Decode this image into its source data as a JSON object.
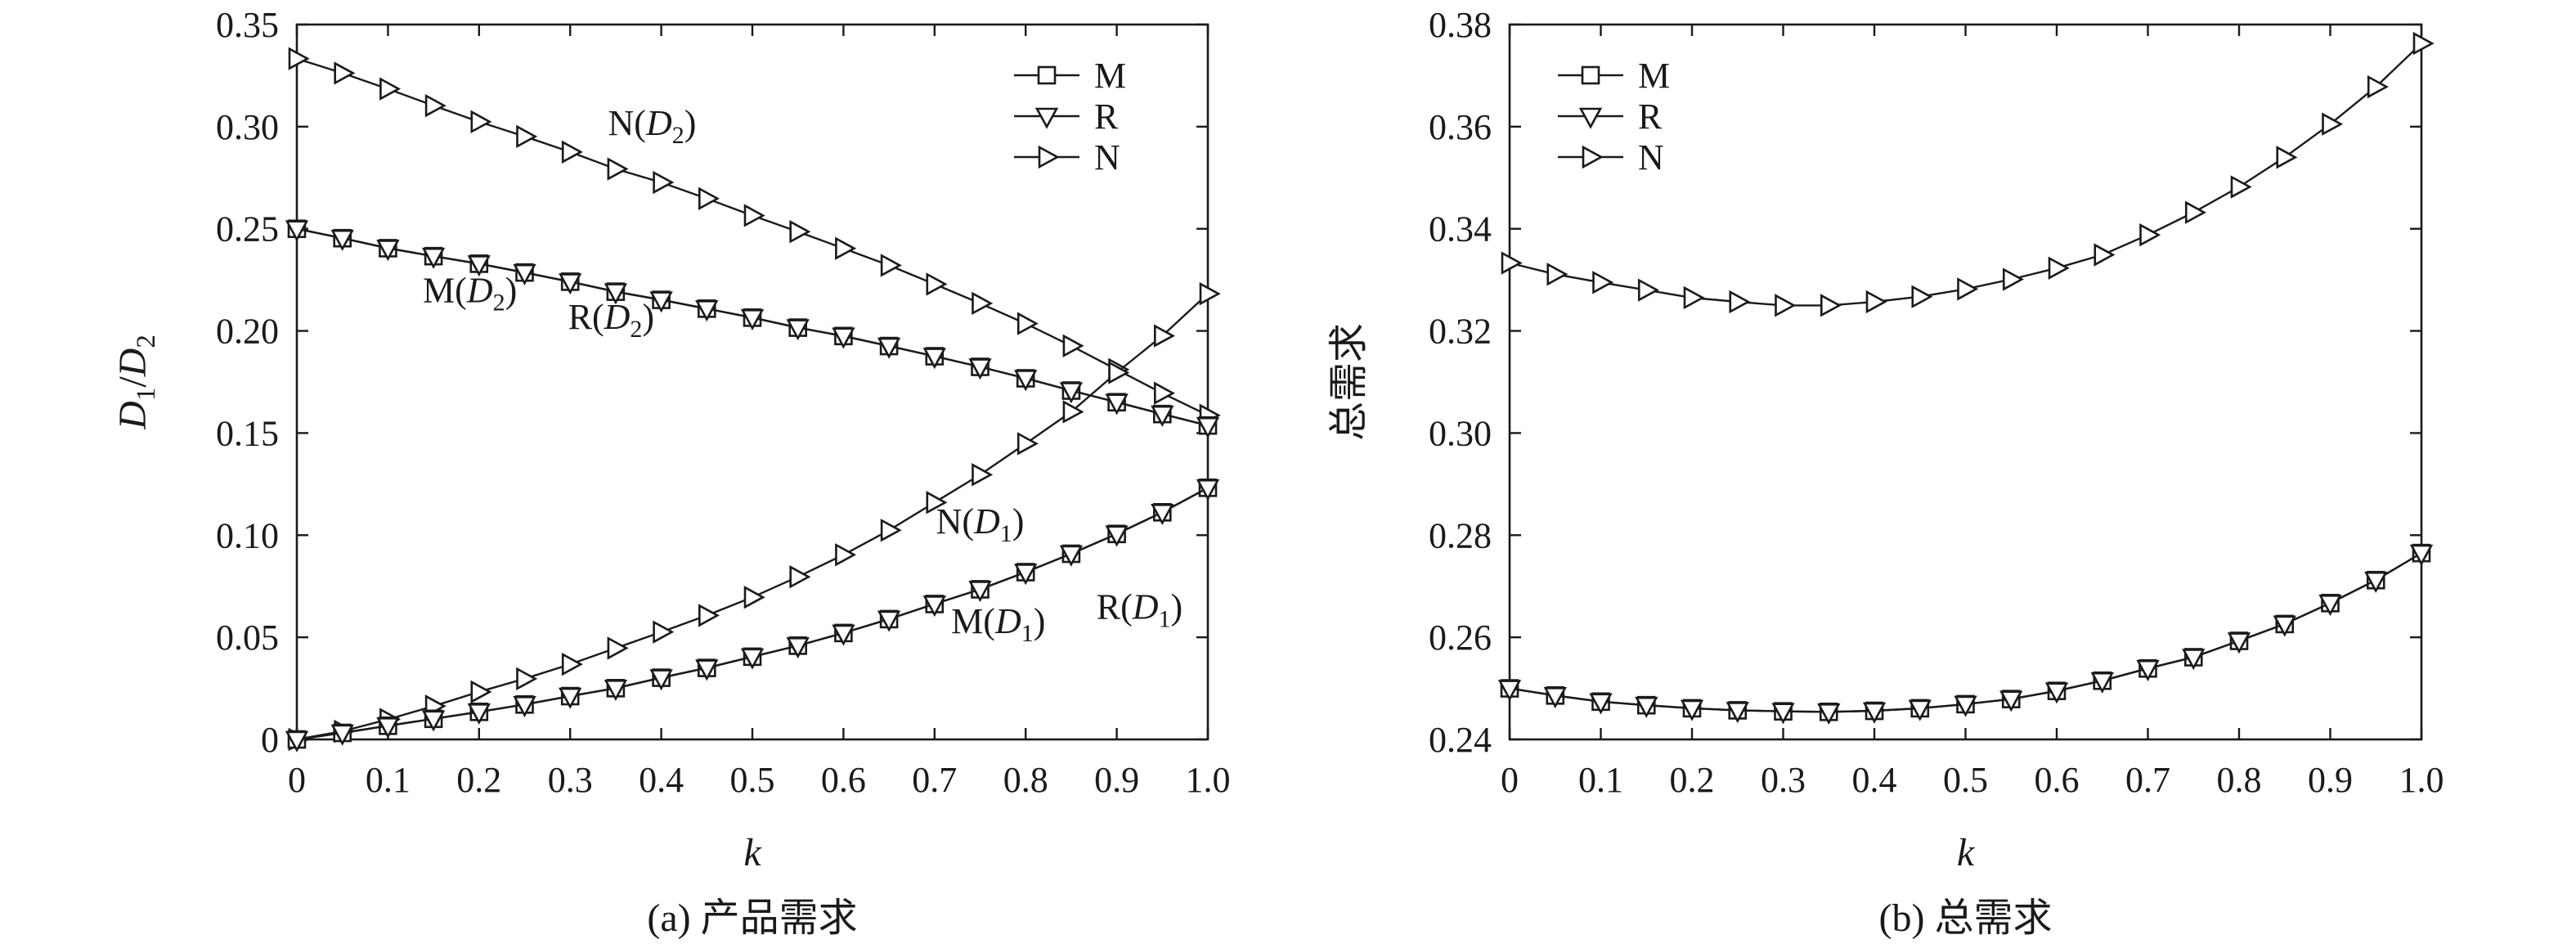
{
  "chart_data": [
    {
      "type": "line",
      "caption": "(a) 产品需求",
      "xlabel": "k",
      "ylabel": "D1/D2",
      "xlim": [
        0,
        1.0
      ],
      "ylim": [
        0,
        0.35
      ],
      "x_ticks": [
        "0",
        "0.1",
        "0.2",
        "0.3",
        "0.4",
        "0.5",
        "0.6",
        "0.7",
        "0.8",
        "0.9",
        "1.0"
      ],
      "y_ticks": [
        "0",
        "0.05",
        "0.10",
        "0.15",
        "0.20",
        "0.25",
        "0.30",
        "0.35"
      ],
      "grid": false,
      "legend_position": "top-right",
      "legend": [
        {
          "label": "M",
          "marker": "square"
        },
        {
          "label": "R",
          "marker": "triangle-down"
        },
        {
          "label": "N",
          "marker": "triangle-right"
        }
      ],
      "x": [
        0,
        0.05,
        0.1,
        0.15,
        0.2,
        0.25,
        0.3,
        0.35,
        0.4,
        0.45,
        0.5,
        0.55,
        0.6,
        0.65,
        0.7,
        0.75,
        0.8,
        0.85,
        0.9,
        0.95,
        1.0
      ],
      "series": [
        {
          "marker": "triangle-right",
          "values": [
            0.3333,
            0.3262,
            0.3185,
            0.3103,
            0.3024,
            0.2952,
            0.2876,
            0.2793,
            0.2727,
            0.2648,
            0.2565,
            0.2486,
            0.2404,
            0.2321,
            0.2229,
            0.2135,
            0.2036,
            0.1927,
            0.1811,
            0.1695,
            0.1587
          ]
        },
        {
          "marker": "square",
          "values": [
            0.25,
            0.2454,
            0.2405,
            0.2366,
            0.2329,
            0.2286,
            0.2241,
            0.2192,
            0.2152,
            0.2109,
            0.2065,
            0.2016,
            0.1975,
            0.1926,
            0.1876,
            0.1824,
            0.1768,
            0.1708,
            0.1651,
            0.1593,
            0.1537
          ]
        },
        {
          "marker": "triangle-down",
          "values": [
            0.25,
            0.2454,
            0.2405,
            0.2366,
            0.2329,
            0.2286,
            0.2241,
            0.2192,
            0.2152,
            0.2109,
            0.2065,
            0.2016,
            0.1975,
            0.1926,
            0.1876,
            0.1824,
            0.1768,
            0.1708,
            0.1651,
            0.1593,
            0.1537
          ]
        },
        {
          "marker": "triangle-right",
          "values": [
            0,
            0.004,
            0.0098,
            0.0163,
            0.0233,
            0.0297,
            0.0368,
            0.0447,
            0.0526,
            0.0607,
            0.0696,
            0.0796,
            0.0904,
            0.1024,
            0.116,
            0.1296,
            0.1448,
            0.1604,
            0.1796,
            0.1976,
            0.2182
          ]
        },
        {
          "marker": "square",
          "values": [
            0,
            0.0032,
            0.0067,
            0.0101,
            0.0135,
            0.0171,
            0.0212,
            0.0251,
            0.0302,
            0.035,
            0.0405,
            0.0459,
            0.0521,
            0.0589,
            0.0663,
            0.0735,
            0.0819,
            0.0909,
            0.1006,
            0.1112,
            0.1232
          ]
        },
        {
          "marker": "triangle-down",
          "values": [
            0,
            0.0032,
            0.0067,
            0.0101,
            0.0135,
            0.0171,
            0.0212,
            0.0251,
            0.0302,
            0.035,
            0.0405,
            0.0459,
            0.0521,
            0.0589,
            0.0663,
            0.0735,
            0.0819,
            0.0909,
            0.1006,
            0.1112,
            0.1232
          ]
        }
      ],
      "annotations": [
        {
          "text": "N(D2)",
          "x": 0.39,
          "y": 0.296
        },
        {
          "text": "M(D2)",
          "x": 0.19,
          "y": 0.214
        },
        {
          "text": "R(D2)",
          "x": 0.345,
          "y": 0.201
        },
        {
          "text": "N(D1)",
          "x": 0.75,
          "y": 0.101
        },
        {
          "text": "M(D1)",
          "x": 0.77,
          "y": 0.052
        },
        {
          "text": "R(D1)",
          "x": 0.925,
          "y": 0.059
        }
      ]
    },
    {
      "type": "line",
      "caption": "(b) 总需求",
      "xlabel": "k",
      "ylabel": "总需求",
      "xlim": [
        0,
        1.0
      ],
      "ylim": [
        0.24,
        0.38
      ],
      "x_ticks": [
        "0",
        "0.1",
        "0.2",
        "0.3",
        "0.4",
        "0.5",
        "0.6",
        "0.7",
        "0.8",
        "0.9",
        "1.0"
      ],
      "y_ticks": [
        "0.24",
        "0.26",
        "0.28",
        "0.30",
        "0.32",
        "0.34",
        "0.36",
        "0.38"
      ],
      "grid": false,
      "legend_position": "top-left",
      "legend": [
        {
          "label": "M",
          "marker": "square"
        },
        {
          "label": "R",
          "marker": "triangle-down"
        },
        {
          "label": "N",
          "marker": "triangle-right"
        }
      ],
      "x": [
        0,
        0.05,
        0.1,
        0.15,
        0.2,
        0.25,
        0.3,
        0.35,
        0.4,
        0.45,
        0.5,
        0.55,
        0.6,
        0.65,
        0.7,
        0.75,
        0.8,
        0.85,
        0.9,
        0.95,
        1.0
      ],
      "series": [
        {
          "marker": "square",
          "values": [
            0.25,
            0.2486,
            0.2474,
            0.2467,
            0.2461,
            0.2457,
            0.2455,
            0.2454,
            0.2456,
            0.2461,
            0.2469,
            0.2479,
            0.2495,
            0.2515,
            0.2539,
            0.2561,
            0.2593,
            0.2626,
            0.2667,
            0.2712,
            0.2765
          ]
        },
        {
          "marker": "triangle-down",
          "values": [
            0.25,
            0.2486,
            0.2474,
            0.2467,
            0.2461,
            0.2457,
            0.2455,
            0.2454,
            0.2456,
            0.2461,
            0.2469,
            0.2479,
            0.2495,
            0.2515,
            0.2539,
            0.2561,
            0.2593,
            0.2626,
            0.2667,
            0.2712,
            0.2765
          ]
        },
        {
          "marker": "triangle-right",
          "values": [
            0.3333,
            0.3311,
            0.3295,
            0.328,
            0.3265,
            0.3257,
            0.325,
            0.325,
            0.3257,
            0.3267,
            0.3282,
            0.3301,
            0.3323,
            0.3349,
            0.3388,
            0.3432,
            0.3482,
            0.354,
            0.3605,
            0.3678,
            0.3763
          ]
        }
      ]
    }
  ]
}
